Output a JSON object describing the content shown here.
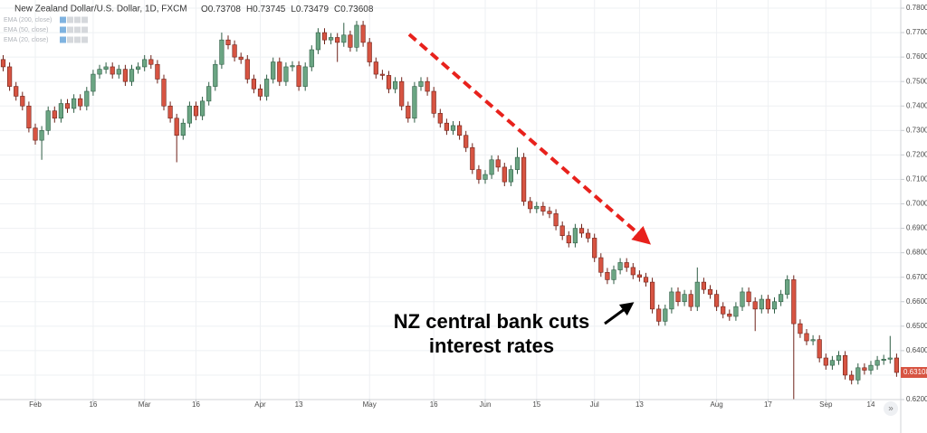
{
  "chart_data": {
    "type": "candlestick",
    "title": "New Zealand Dollar/U.S. Dollar, 1D, FXCM",
    "ohlc_legend": [
      {
        "label": "O",
        "value": 0.73708
      },
      {
        "label": "H",
        "value": 0.73745
      },
      {
        "label": "L",
        "value": 0.73479
      },
      {
        "label": "C",
        "value": 0.73608
      }
    ],
    "indicators": [
      "EMA (200, close)",
      "EMA (50, close)",
      "EMA (20, close)"
    ],
    "annotation": [
      "NZ central bank cuts",
      "interest rates"
    ],
    "up_color": "#6ba583",
    "down_color": "#d75442",
    "arrow_color": "#e8211c",
    "grid": true,
    "ylim": [
      0.62,
      0.78
    ],
    "yticks": [
      {
        "value": 0.78,
        "label": "0.78000"
      },
      {
        "value": 0.77,
        "label": "0.77000"
      },
      {
        "value": 0.76,
        "label": "0.76000"
      },
      {
        "value": 0.75,
        "label": "0.75000"
      },
      {
        "value": 0.74,
        "label": "0.74000"
      },
      {
        "value": 0.73,
        "label": "0.73000"
      },
      {
        "value": 0.72,
        "label": "0.72000"
      },
      {
        "value": 0.71,
        "label": "0.71000"
      },
      {
        "value": 0.7,
        "label": "0.70000"
      },
      {
        "value": 0.69,
        "label": "0.69000"
      },
      {
        "value": 0.68,
        "label": "0.68000"
      },
      {
        "value": 0.67,
        "label": "0.67000"
      },
      {
        "value": 0.66,
        "label": "0.66000"
      },
      {
        "value": 0.65,
        "label": "0.65000"
      },
      {
        "value": 0.64,
        "label": "0.64000"
      },
      {
        "value": 0.63,
        "label": "0.63000"
      },
      {
        "value": 0.62,
        "label": "0.62000"
      }
    ],
    "xticks": [
      {
        "value": 5,
        "label": "Feb"
      },
      {
        "value": 14,
        "label": "16"
      },
      {
        "value": 22,
        "label": "Mar"
      },
      {
        "value": 30,
        "label": "16"
      },
      {
        "value": 40,
        "label": "Apr"
      },
      {
        "value": 46,
        "label": "13"
      },
      {
        "value": 57,
        "label": "May"
      },
      {
        "value": 67,
        "label": "16"
      },
      {
        "value": 75,
        "label": "Jun"
      },
      {
        "value": 83,
        "label": "15"
      },
      {
        "value": 92,
        "label": "Jul"
      },
      {
        "value": 99,
        "label": "13"
      },
      {
        "value": 111,
        "label": "Aug"
      },
      {
        "value": 119,
        "label": "17"
      },
      {
        "value": 128,
        "label": "Sep"
      },
      {
        "value": 135,
        "label": "14"
      }
    ],
    "open": [
      0.759,
      0.756,
      0.748,
      0.744,
      0.74,
      0.731,
      0.726,
      0.73,
      0.738,
      0.735,
      0.741,
      0.739,
      0.743,
      0.74,
      0.746,
      0.753,
      0.755,
      0.756,
      0.753,
      0.755,
      0.75,
      0.755,
      0.756,
      0.759,
      0.757,
      0.751,
      0.74,
      0.735,
      0.728,
      0.733,
      0.74,
      0.736,
      0.742,
      0.748,
      0.757,
      0.767,
      0.765,
      0.76,
      0.759,
      0.751,
      0.747,
      0.744,
      0.751,
      0.758,
      0.75,
      0.756,
      0.7565,
      0.748,
      0.756,
      0.763,
      0.77,
      0.767,
      0.768,
      0.766,
      0.769,
      0.764,
      0.773,
      0.766,
      0.758,
      0.753,
      0.7525,
      0.747,
      0.75,
      0.74,
      0.735,
      0.748,
      0.75,
      0.746,
      0.737,
      0.733,
      0.73,
      0.732,
      0.728,
      0.723,
      0.714,
      0.71,
      0.712,
      0.718,
      0.715,
      0.709,
      0.714,
      0.719,
      0.701,
      0.698,
      0.699,
      0.697,
      0.696,
      0.691,
      0.687,
      0.684,
      0.69,
      0.688,
      0.686,
      0.678,
      0.672,
      0.669,
      0.673,
      0.676,
      0.674,
      0.671,
      0.67,
      0.668,
      0.657,
      0.652,
      0.657,
      0.664,
      0.66,
      0.663,
      0.658,
      0.668,
      0.665,
      0.663,
      0.658,
      0.655,
      0.654,
      0.658,
      0.664,
      0.66,
      0.657,
      0.661,
      0.657,
      0.66,
      0.663,
      0.669,
      0.651,
      0.647,
      0.644,
      0.6445,
      0.637,
      0.634,
      0.636,
      0.638,
      0.63,
      0.628,
      0.633,
      0.632,
      0.634,
      0.636,
      0.6365,
      0.637
    ],
    "high": [
      0.7608,
      0.7578,
      0.7498,
      0.7458,
      0.7418,
      0.7328,
      0.7318,
      0.7398,
      0.7398,
      0.7428,
      0.7428,
      0.7448,
      0.7448,
      0.7478,
      0.7548,
      0.7568,
      0.7578,
      0.7578,
      0.7568,
      0.7568,
      0.7568,
      0.7578,
      0.7608,
      0.7608,
      0.7588,
      0.7528,
      0.7418,
      0.7368,
      0.7348,
      0.7418,
      0.7418,
      0.7438,
      0.7498,
      0.7588,
      0.77,
      0.7688,
      0.7668,
      0.7618,
      0.7608,
      0.7528,
      0.7488,
      0.7528,
      0.7598,
      0.7598,
      0.7578,
      0.7583,
      0.7583,
      0.7578,
      0.7648,
      0.7718,
      0.7718,
      0.7698,
      0.7698,
      0.774,
      0.7708,
      0.7748,
      0.7748,
      0.7678,
      0.7598,
      0.7548,
      0.7543,
      0.7518,
      0.7518,
      0.7418,
      0.7498,
      0.7518,
      0.7518,
      0.7478,
      0.7388,
      0.7348,
      0.7338,
      0.7338,
      0.7298,
      0.7248,
      0.7158,
      0.7138,
      0.7198,
      0.7198,
      0.7168,
      0.7158,
      0.723,
      0.7208,
      0.7028,
      0.7008,
      0.7008,
      0.6988,
      0.6978,
      0.6928,
      0.6888,
      0.6918,
      0.6918,
      0.6898,
      0.6878,
      0.6798,
      0.6738,
      0.6748,
      0.6778,
      0.6778,
      0.6758,
      0.6728,
      0.6718,
      0.6698,
      0.6588,
      0.6588,
      0.6658,
      0.6658,
      0.6648,
      0.6648,
      0.674,
      0.6698,
      0.6668,
      0.6648,
      0.6598,
      0.6568,
      0.6598,
      0.6658,
      0.6658,
      0.6618,
      0.6628,
      0.6628,
      0.6618,
      0.6648,
      0.6708,
      0.6708,
      0.6528,
      0.6488,
      0.6463,
      0.6463,
      0.6388,
      0.6378,
      0.6398,
      0.6398,
      0.6318,
      0.6348,
      0.6348,
      0.6358,
      0.6378,
      0.6383,
      0.646,
      0.6388
    ],
    "low": [
      0.7542,
      0.7462,
      0.7422,
      0.7382,
      0.7292,
      0.7242,
      0.718,
      0.7282,
      0.7332,
      0.7332,
      0.7372,
      0.7372,
      0.7382,
      0.7382,
      0.7442,
      0.7512,
      0.7532,
      0.7512,
      0.7512,
      0.7482,
      0.7482,
      0.7532,
      0.7542,
      0.7552,
      0.7492,
      0.7382,
      0.7332,
      0.717,
      0.7262,
      0.7312,
      0.7342,
      0.7342,
      0.7402,
      0.7462,
      0.7552,
      0.7632,
      0.7582,
      0.7572,
      0.7492,
      0.7452,
      0.7422,
      0.7422,
      0.7492,
      0.7482,
      0.7482,
      0.7542,
      0.7462,
      0.7462,
      0.7542,
      0.7612,
      0.7652,
      0.7652,
      0.758,
      0.7642,
      0.7622,
      0.7622,
      0.7642,
      0.7562,
      0.7512,
      0.7507,
      0.7452,
      0.7452,
      0.7382,
      0.7332,
      0.7332,
      0.7462,
      0.7442,
      0.7352,
      0.7312,
      0.7282,
      0.7282,
      0.7262,
      0.7212,
      0.7122,
      0.7082,
      0.7082,
      0.7102,
      0.7132,
      0.7072,
      0.7072,
      0.7122,
      0.6992,
      0.6962,
      0.6962,
      0.6952,
      0.6942,
      0.6892,
      0.6852,
      0.6822,
      0.6822,
      0.6862,
      0.6842,
      0.6762,
      0.6702,
      0.6672,
      0.6672,
      0.6712,
      0.6722,
      0.6692,
      0.6682,
      0.6662,
      0.6552,
      0.6502,
      0.6502,
      0.6552,
      0.6582,
      0.6582,
      0.6562,
      0.6562,
      0.6632,
      0.6612,
      0.6562,
      0.6532,
      0.6522,
      0.6522,
      0.6562,
      0.6582,
      0.648,
      0.6552,
      0.6552,
      0.6552,
      0.6582,
      0.6612,
      0.62,
      0.6452,
      0.6422,
      0.6422,
      0.6352,
      0.6322,
      0.6322,
      0.6342,
      0.6282,
      0.6262,
      0.6262,
      0.6302,
      0.6302,
      0.6322,
      0.6342,
      0.6347,
      0.6293
    ],
    "close": [
      0.756,
      0.748,
      0.744,
      0.74,
      0.731,
      0.726,
      0.73,
      0.738,
      0.735,
      0.741,
      0.739,
      0.743,
      0.74,
      0.746,
      0.753,
      0.755,
      0.756,
      0.753,
      0.755,
      0.75,
      0.755,
      0.756,
      0.759,
      0.757,
      0.751,
      0.74,
      0.735,
      0.728,
      0.733,
      0.74,
      0.736,
      0.742,
      0.748,
      0.757,
      0.767,
      0.765,
      0.76,
      0.759,
      0.751,
      0.747,
      0.744,
      0.751,
      0.758,
      0.75,
      0.756,
      0.7565,
      0.748,
      0.756,
      0.763,
      0.77,
      0.767,
      0.768,
      0.766,
      0.769,
      0.764,
      0.773,
      0.766,
      0.758,
      0.753,
      0.7525,
      0.747,
      0.75,
      0.74,
      0.735,
      0.748,
      0.75,
      0.746,
      0.737,
      0.733,
      0.73,
      0.732,
      0.728,
      0.723,
      0.714,
      0.71,
      0.712,
      0.718,
      0.715,
      0.709,
      0.714,
      0.719,
      0.701,
      0.698,
      0.699,
      0.697,
      0.696,
      0.691,
      0.687,
      0.684,
      0.69,
      0.688,
      0.686,
      0.678,
      0.672,
      0.669,
      0.673,
      0.676,
      0.674,
      0.671,
      0.67,
      0.668,
      0.657,
      0.652,
      0.657,
      0.664,
      0.66,
      0.663,
      0.658,
      0.668,
      0.665,
      0.663,
      0.658,
      0.655,
      0.654,
      0.658,
      0.664,
      0.66,
      0.657,
      0.661,
      0.657,
      0.66,
      0.663,
      0.669,
      0.651,
      0.647,
      0.644,
      0.6445,
      0.637,
      0.634,
      0.636,
      0.638,
      0.63,
      0.628,
      0.633,
      0.632,
      0.634,
      0.636,
      0.6365,
      0.637,
      0.63108
    ]
  }
}
